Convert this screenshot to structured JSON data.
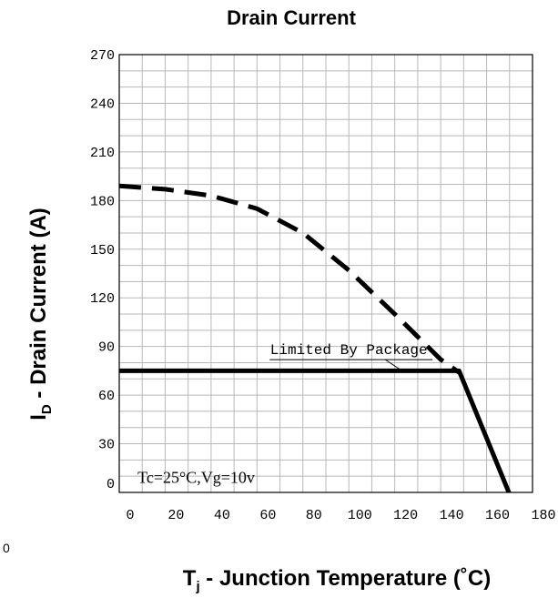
{
  "chart_data": {
    "type": "line",
    "title": "Drain Current",
    "xlabel_main": "T",
    "xlabel_sub": "j",
    "xlabel_rest": " - Junction Temperature (",
    "xlabel_unit": "˚C)",
    "ylabel_main": "I",
    "ylabel_sub": "D",
    "ylabel_rest": " - Drain Current (A)",
    "xlim": [
      0,
      180
    ],
    "ylim": [
      0,
      270
    ],
    "x_ticks": [
      "0",
      "20",
      "40",
      "60",
      "80",
      "100",
      "120",
      "140",
      "160",
      "180"
    ],
    "y_ticks": [
      "0",
      "30",
      "60",
      "90",
      "120",
      "150",
      "180",
      "210",
      "240",
      "270"
    ],
    "series": [
      {
        "style": "dashed",
        "x": [
          0,
          20,
          40,
          60,
          80,
          100,
          120,
          140,
          148
        ],
        "y": [
          189,
          187,
          183,
          175,
          160,
          137,
          110,
          82,
          74
        ]
      },
      {
        "style": "solid",
        "x": [
          0,
          148,
          172
        ],
        "y": [
          75,
          75,
          -8
        ]
      }
    ],
    "annotations": [
      {
        "text": "Limited By Package",
        "x": 100,
        "y": 83,
        "arrow_to": [
          120,
          75
        ]
      },
      {
        "text": "Tc=25°C,Vg=10v",
        "x": 8,
        "y": 6
      }
    ],
    "stray_text": "0",
    "grid": true
  }
}
